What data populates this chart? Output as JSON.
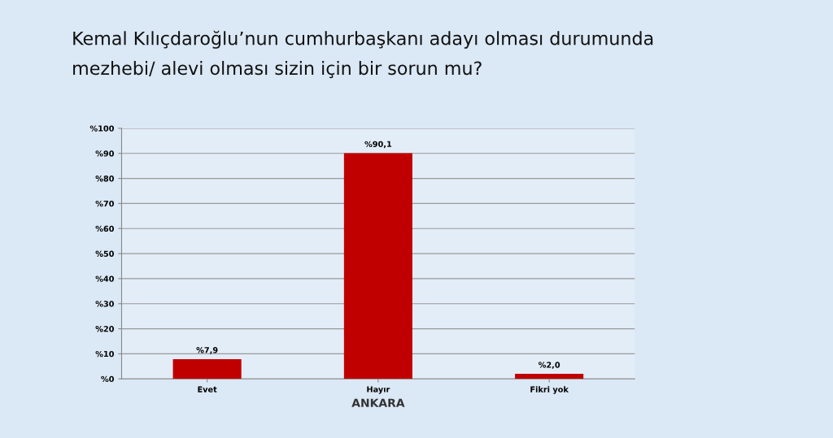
{
  "chart_data": {
    "type": "bar",
    "title": "Kemal Kılıçdaroğlu’nun cumhurbaşkanı adayı olması durumunda\nmezhebi/ alevi olması sizin için bir sorun mu?",
    "xlabel": "ANKARA",
    "categories": [
      "Evet",
      "Hayır",
      "Fikri yok"
    ],
    "values": [
      7.9,
      90.1,
      2.0
    ],
    "value_labels": [
      "%7,9",
      "%90,1",
      "%2,0"
    ],
    "color": "#c00000",
    "ylim": [
      0,
      100
    ],
    "yticks": [
      {
        "value": 0,
        "label": "%0"
      },
      {
        "value": 10,
        "label": "%10"
      },
      {
        "value": 20,
        "label": "%20"
      },
      {
        "value": 30,
        "label": "%30"
      },
      {
        "value": 40,
        "label": "%40"
      },
      {
        "value": 50,
        "label": "%50"
      },
      {
        "value": 60,
        "label": "%60"
      },
      {
        "value": 70,
        "label": "%70"
      },
      {
        "value": 80,
        "label": "%80"
      },
      {
        "value": 90,
        "label": "%90"
      },
      {
        "value": 100,
        "label": "%100"
      }
    ],
    "grid": "y",
    "legend": false
  }
}
